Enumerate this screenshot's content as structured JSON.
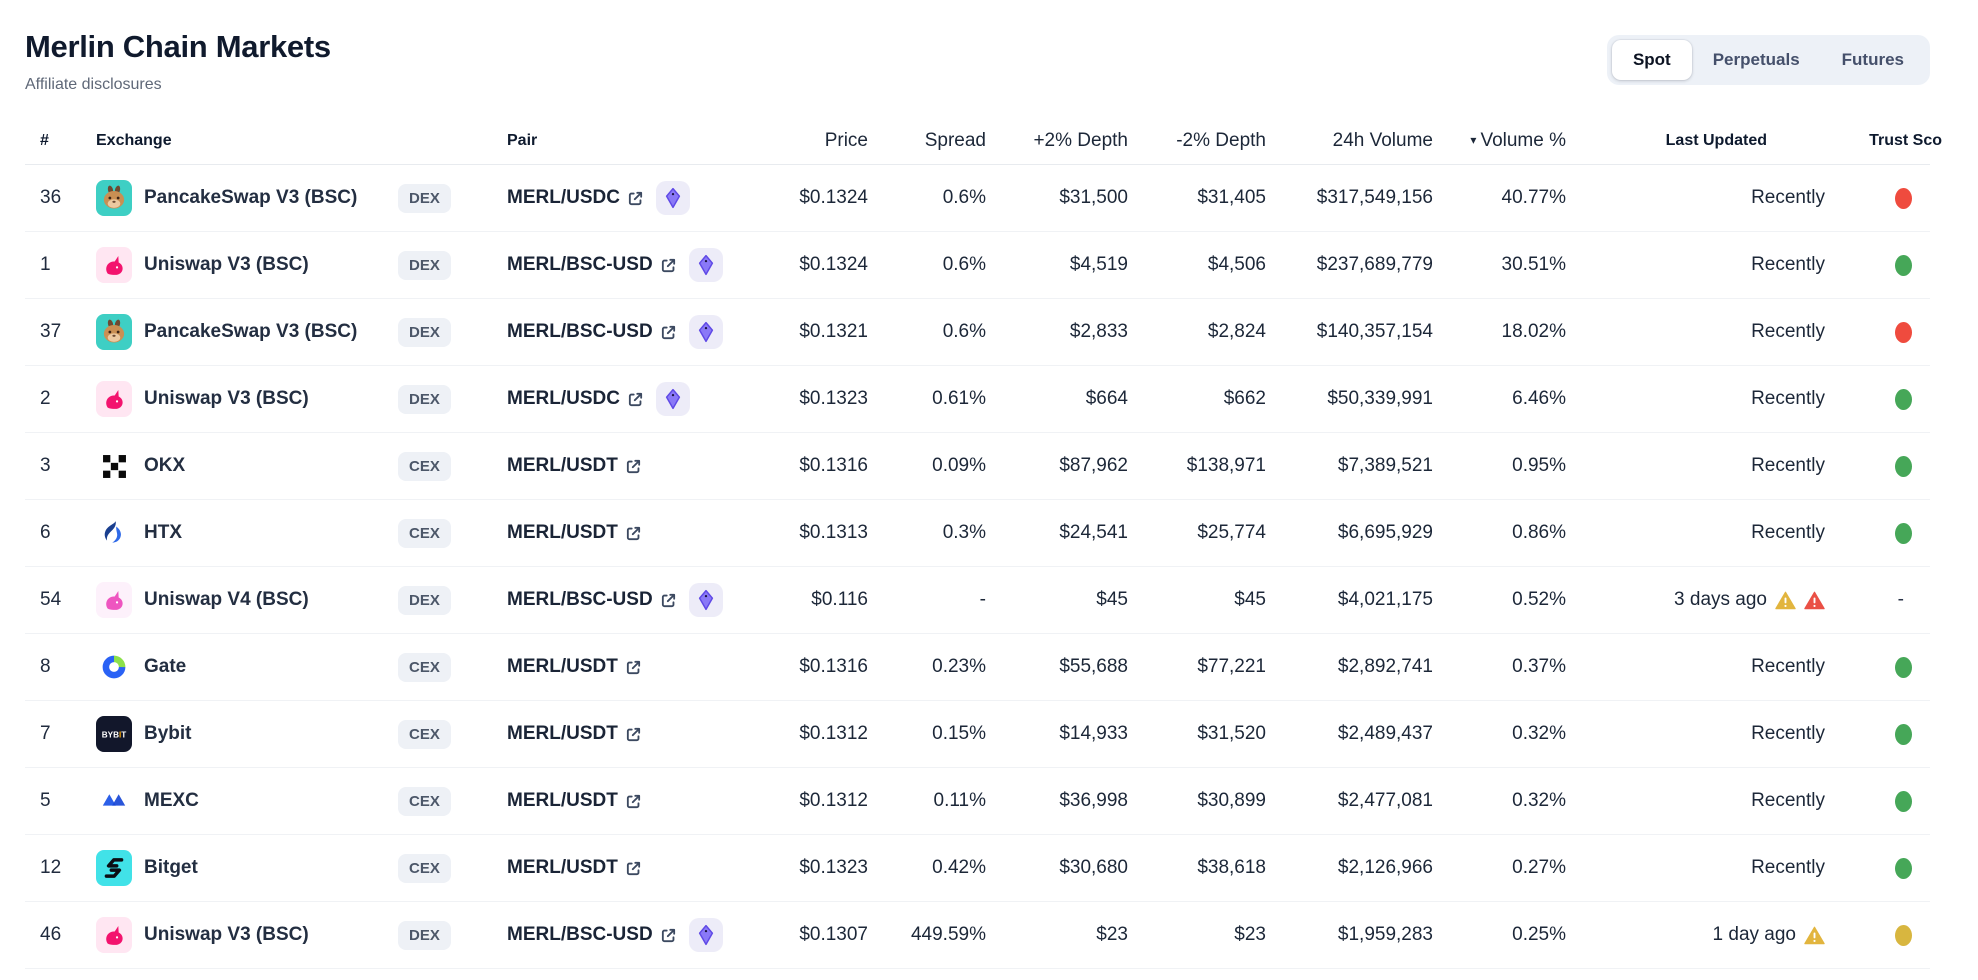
{
  "header": {
    "title": "Merlin Chain Markets",
    "affiliate_link": "Affiliate disclosures"
  },
  "tabs": {
    "items": [
      {
        "label": "Spot",
        "active": true
      },
      {
        "label": "Perpetuals",
        "active": false
      },
      {
        "label": "Futures",
        "active": false
      }
    ]
  },
  "table": {
    "columns": [
      "#",
      "Exchange",
      "Pair",
      "Price",
      "Spread",
      "+2% Depth",
      "-2% Depth",
      "24h Volume",
      "Volume %",
      "Last Updated",
      "Trust Sco"
    ],
    "sorted_by": "Volume %",
    "sort_direction": "descending",
    "rows": [
      {
        "rank": "36",
        "exchange": "PancakeSwap V3 (BSC)",
        "icon": "pancakeswap-icon",
        "icon_bg": "#3ecfc4",
        "icon_fg": "#c98f53",
        "type": "DEX",
        "pair": "MERL/USDC",
        "gecko_chip": true,
        "price": "$0.1324",
        "spread": "0.6%",
        "depth_plus": "$31,500",
        "depth_minus": "$31,405",
        "volume": "$317,549,156",
        "volume_pct": "40.77%",
        "last_updated": "Recently",
        "warnings": [],
        "trust": "red"
      },
      {
        "rank": "1",
        "exchange": "Uniswap V3 (BSC)",
        "icon": "uniswap-icon",
        "icon_bg": "#ffe6f2",
        "icon_fg": "#f3136e",
        "type": "DEX",
        "pair": "MERL/BSC-USD",
        "gecko_chip": true,
        "price": "$0.1324",
        "spread": "0.6%",
        "depth_plus": "$4,519",
        "depth_minus": "$4,506",
        "volume": "$237,689,779",
        "volume_pct": "30.51%",
        "last_updated": "Recently",
        "warnings": [],
        "trust": "green"
      },
      {
        "rank": "37",
        "exchange": "PancakeSwap V3 (BSC)",
        "icon": "pancakeswap-icon",
        "icon_bg": "#3ecfc4",
        "icon_fg": "#c98f53",
        "type": "DEX",
        "pair": "MERL/BSC-USD",
        "gecko_chip": true,
        "price": "$0.1321",
        "spread": "0.6%",
        "depth_plus": "$2,833",
        "depth_minus": "$2,824",
        "volume": "$140,357,154",
        "volume_pct": "18.02%",
        "last_updated": "Recently",
        "warnings": [],
        "trust": "red"
      },
      {
        "rank": "2",
        "exchange": "Uniswap V3 (BSC)",
        "icon": "uniswap-icon",
        "icon_bg": "#ffe6f2",
        "icon_fg": "#f3136e",
        "type": "DEX",
        "pair": "MERL/USDC",
        "gecko_chip": true,
        "price": "$0.1323",
        "spread": "0.61%",
        "depth_plus": "$664",
        "depth_minus": "$662",
        "volume": "$50,339,991",
        "volume_pct": "6.46%",
        "last_updated": "Recently",
        "warnings": [],
        "trust": "green"
      },
      {
        "rank": "3",
        "exchange": "OKX",
        "icon": "okx-icon",
        "icon_bg": "#ffffff",
        "icon_fg": "#0a0a0a",
        "type": "CEX",
        "pair": "MERL/USDT",
        "gecko_chip": false,
        "price": "$0.1316",
        "spread": "0.09%",
        "depth_plus": "$87,962",
        "depth_minus": "$138,971",
        "volume": "$7,389,521",
        "volume_pct": "0.95%",
        "last_updated": "Recently",
        "warnings": [],
        "trust": "green"
      },
      {
        "rank": "6",
        "exchange": "HTX",
        "icon": "htx-icon",
        "icon_bg": "#ffffff",
        "icon_fg": "#2f6ae8",
        "type": "CEX",
        "pair": "MERL/USDT",
        "gecko_chip": false,
        "price": "$0.1313",
        "spread": "0.3%",
        "depth_plus": "$24,541",
        "depth_minus": "$25,774",
        "volume": "$6,695,929",
        "volume_pct": "0.86%",
        "last_updated": "Recently",
        "warnings": [],
        "trust": "green"
      },
      {
        "rank": "54",
        "exchange": "Uniswap V4 (BSC)",
        "icon": "uniswap-icon",
        "icon_bg": "#fdf1fb",
        "icon_fg": "#ee55c0",
        "type": "DEX",
        "pair": "MERL/BSC-USD",
        "gecko_chip": true,
        "price": "$0.116",
        "spread": "-",
        "depth_plus": "$45",
        "depth_minus": "$45",
        "volume": "$4,021,175",
        "volume_pct": "0.52%",
        "last_updated": "3 days ago",
        "warnings": [
          "yellow",
          "red"
        ],
        "trust": "none"
      },
      {
        "rank": "8",
        "exchange": "Gate",
        "icon": "gate-icon",
        "icon_bg": "#ffffff",
        "icon_fg": "#2a62f5",
        "type": "CEX",
        "pair": "MERL/USDT",
        "gecko_chip": false,
        "price": "$0.1316",
        "spread": "0.23%",
        "depth_plus": "$55,688",
        "depth_minus": "$77,221",
        "volume": "$2,892,741",
        "volume_pct": "0.37%",
        "last_updated": "Recently",
        "warnings": [],
        "trust": "green"
      },
      {
        "rank": "7",
        "exchange": "Bybit",
        "icon": "bybit-icon",
        "icon_bg": "#12172b",
        "icon_fg": "#f7a600",
        "type": "CEX",
        "pair": "MERL/USDT",
        "gecko_chip": false,
        "price": "$0.1312",
        "spread": "0.15%",
        "depth_plus": "$14,933",
        "depth_minus": "$31,520",
        "volume": "$2,489,437",
        "volume_pct": "0.32%",
        "last_updated": "Recently",
        "warnings": [],
        "trust": "green"
      },
      {
        "rank": "5",
        "exchange": "MEXC",
        "icon": "mexc-icon",
        "icon_bg": "#ffffff",
        "icon_fg": "#2b5fe8",
        "type": "CEX",
        "pair": "MERL/USDT",
        "gecko_chip": false,
        "price": "$0.1312",
        "spread": "0.11%",
        "depth_plus": "$36,998",
        "depth_minus": "$30,899",
        "volume": "$2,477,081",
        "volume_pct": "0.32%",
        "last_updated": "Recently",
        "warnings": [],
        "trust": "green"
      },
      {
        "rank": "12",
        "exchange": "Bitget",
        "icon": "bitget-icon",
        "icon_bg": "#41e2e8",
        "icon_fg": "#0b0e14",
        "type": "CEX",
        "pair": "MERL/USDT",
        "gecko_chip": false,
        "price": "$0.1323",
        "spread": "0.42%",
        "depth_plus": "$30,680",
        "depth_minus": "$38,618",
        "volume": "$2,126,966",
        "volume_pct": "0.27%",
        "last_updated": "Recently",
        "warnings": [],
        "trust": "green"
      },
      {
        "rank": "46",
        "exchange": "Uniswap V3 (BSC)",
        "icon": "uniswap-icon",
        "icon_bg": "#ffe6f2",
        "icon_fg": "#f3136e",
        "type": "DEX",
        "pair": "MERL/BSC-USD",
        "gecko_chip": true,
        "price": "$0.1307",
        "spread": "449.59%",
        "depth_plus": "$23",
        "depth_minus": "$23",
        "volume": "$1,959,283",
        "volume_pct": "0.25%",
        "last_updated": "1 day ago",
        "warnings": [
          "yellow"
        ],
        "trust": "yellow"
      }
    ]
  },
  "colors": {
    "trust_green": "#46a758",
    "trust_red": "#ef4b3e",
    "trust_yellow": "#d8b63f",
    "warn_yellow": "#e2b53e",
    "warn_red": "#ea5045",
    "badge_bg": "#eef1f6",
    "tab_bar_bg": "#edf1f7",
    "gecko_purple": "#8a79f7"
  }
}
